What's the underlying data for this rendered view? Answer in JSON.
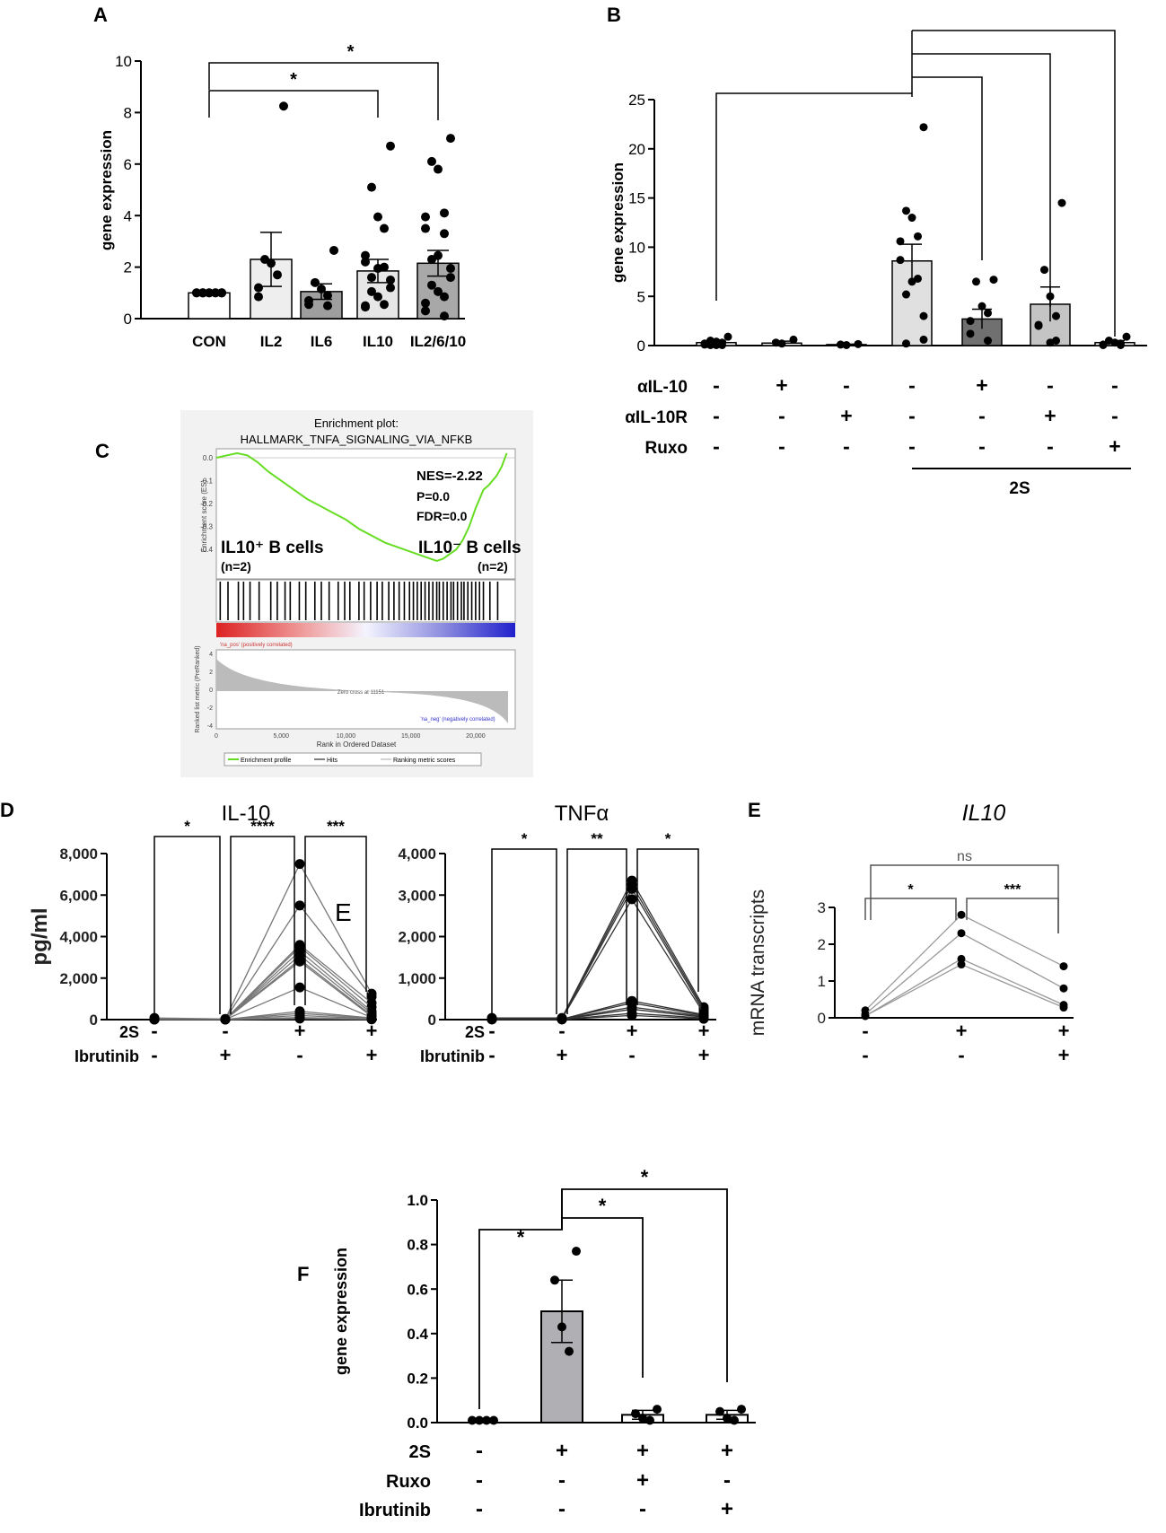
{
  "panels": {
    "A": {
      "letter": "A"
    },
    "B": {
      "letter": "B"
    },
    "C": {
      "letter": "C"
    },
    "D": {
      "letter": "D"
    },
    "E": {
      "letter": "E",
      "stray_letter": "E"
    },
    "F": {
      "letter": "F"
    }
  },
  "chart_data": [
    {
      "id": "A",
      "type": "bar",
      "ylabel": "gene expression",
      "ylim": [
        0,
        10
      ],
      "yticks": [
        "0",
        "2",
        "4",
        "6",
        "8",
        "10"
      ],
      "categories": [
        "CON",
        "IL2",
        "IL6",
        "IL10",
        "IL2/6/10"
      ],
      "values": [
        1.0,
        2.3,
        1.05,
        1.85,
        2.15
      ],
      "errors": [
        0.0,
        1.05,
        0.3,
        0.45,
        0.5
      ],
      "bar_colors": [
        "#ffffff",
        "#eeeeee",
        "#9e9e9e",
        "#e6e6e6",
        "#a8a8a8"
      ],
      "points": [
        [
          1,
          1,
          1,
          1,
          1,
          1,
          1,
          1,
          1,
          1,
          1,
          1
        ],
        [
          8.25,
          2.3,
          2.15,
          1.7,
          1.2,
          0.85
        ],
        [
          2.65,
          1.4,
          1.15,
          0.9,
          0.7,
          0.55,
          0.5
        ],
        [
          6.7,
          5.1,
          3.95,
          3.5,
          2.45,
          2.2,
          2.0,
          1.95,
          1.6,
          1.5,
          1.2,
          1.05,
          0.85,
          0.55,
          0.5,
          0.45
        ],
        [
          7.0,
          6.1,
          5.8,
          4.1,
          3.95,
          3.5,
          3.3,
          2.45,
          2.3,
          1.95,
          1.6,
          1.3,
          1.05,
          0.85,
          0.6,
          0.3,
          0.1
        ]
      ],
      "brackets": [
        {
          "from": 0,
          "to": 3,
          "label": "*"
        },
        {
          "from": 0,
          "to": 4,
          "label": "*"
        }
      ]
    },
    {
      "id": "B",
      "type": "bar",
      "ylabel": "gene expression",
      "ylim": [
        0,
        25
      ],
      "yticks": [
        "0",
        "5",
        "10",
        "15",
        "20",
        "25"
      ],
      "values": [
        0.3,
        0.25,
        0.1,
        8.6,
        2.7,
        4.2,
        0.3
      ],
      "errors": [
        0.15,
        0.2,
        0.05,
        1.7,
        1.0,
        1.75,
        0.2
      ],
      "bar_colors": [
        "#ffffff",
        "#ffffff",
        "#ffffff",
        "#e0e0e0",
        "#707070",
        "#c4c4c4",
        "#ffffff"
      ],
      "points": [
        [
          0.9,
          0.5,
          0.4,
          0.3,
          0.2,
          0.1,
          0.05,
          0.05,
          0.05
        ],
        [
          0.6,
          0.3,
          0.2
        ],
        [
          0.15,
          0.1,
          0.05
        ],
        [
          22.2,
          13.7,
          13.0,
          11.1,
          10.6,
          8.7,
          6.8,
          6.5,
          5.2,
          3.0,
          0.6,
          0.2
        ],
        [
          6.7,
          6.5,
          4.0,
          3.3,
          2.5,
          1.2,
          0.5
        ],
        [
          14.5,
          7.7,
          5.0,
          3.0,
          2.1,
          2.0,
          0.5,
          0.3
        ],
        [
          0.9,
          0.5,
          0.3,
          0.2,
          0.1,
          0.05,
          0.05
        ]
      ],
      "conditions": [
        {
          "label": "αIL-10",
          "signs": [
            "-",
            "+",
            "-",
            "-",
            "+",
            "-",
            "-"
          ]
        },
        {
          "label": "αIL-10R",
          "signs": [
            "-",
            "-",
            "+",
            "-",
            "-",
            "+",
            "-"
          ]
        },
        {
          "label": "Ruxo",
          "signs": [
            "-",
            "-",
            "-",
            "-",
            "-",
            "-",
            "+"
          ]
        }
      ],
      "group_label": "2S",
      "brackets": [
        {
          "from": 3,
          "to": 0
        },
        {
          "from": 3,
          "to": 4
        },
        {
          "from": 3,
          "to": 5
        },
        {
          "from": 3,
          "to": 6
        }
      ]
    },
    {
      "id": "C",
      "type": "line",
      "title_line1": "Enrichment plot:",
      "title_line2": "HALLMARK_TNFA_SIGNALING_VIA_NFKB",
      "ylabel": "Enrichment score (ES)",
      "yticks": [
        "0.0",
        "-0.1",
        "-0.2",
        "-0.3",
        "-0.4"
      ],
      "stats": [
        "NES=-2.22",
        "P=0.0",
        "FDR=0.0"
      ],
      "left_group": "IL10⁺ B cells",
      "left_n": "(n=2)",
      "right_group": "IL10⁻ B cells",
      "right_n": "(n=2)",
      "pos_label": "'na_pos' (positively correlated)",
      "neg_label": "'na_neg' (negatively correlated)",
      "zero_cross": "Zero cross at 11151",
      "metric_ylabel": "Ranked list metric (PreRanked)",
      "metric_yticks": [
        "4",
        "2",
        "0",
        "-2",
        "-4"
      ],
      "xticks": [
        "0",
        "5,000",
        "10,000",
        "15,000",
        "20,000"
      ],
      "xlabel": "Rank in Ordered Dataset",
      "legend": [
        "Enrichment profile",
        "Hits",
        "Ranking metric scores"
      ],
      "rank_max": 22500,
      "es_curve": [
        [
          0,
          0.0
        ],
        [
          800,
          0.01
        ],
        [
          1600,
          0.02
        ],
        [
          2400,
          0.01
        ],
        [
          3200,
          -0.02
        ],
        [
          4000,
          -0.06
        ],
        [
          5000,
          -0.1
        ],
        [
          6000,
          -0.14
        ],
        [
          7000,
          -0.18
        ],
        [
          8000,
          -0.21
        ],
        [
          9000,
          -0.24
        ],
        [
          10000,
          -0.27
        ],
        [
          11000,
          -0.31
        ],
        [
          12000,
          -0.34
        ],
        [
          13000,
          -0.37
        ],
        [
          14000,
          -0.39
        ],
        [
          15000,
          -0.41
        ],
        [
          16000,
          -0.43
        ],
        [
          17000,
          -0.45
        ],
        [
          17500,
          -0.44
        ],
        [
          18000,
          -0.42
        ],
        [
          18500,
          -0.4
        ],
        [
          19000,
          -0.36
        ],
        [
          19500,
          -0.3
        ],
        [
          20000,
          -0.22
        ],
        [
          20600,
          -0.14
        ],
        [
          21000,
          -0.12
        ],
        [
          21600,
          -0.08
        ],
        [
          22000,
          -0.04
        ],
        [
          22400,
          0.02
        ]
      ],
      "hits": [
        300,
        900,
        1700,
        2100,
        2600,
        3300,
        4200,
        4700,
        5300,
        5700,
        6400,
        6900,
        7600,
        8100,
        8700,
        9400,
        9900,
        10300,
        11000,
        11400,
        11900,
        12400,
        12800,
        13300,
        13700,
        14100,
        14500,
        14900,
        15200,
        15500,
        15800,
        16100,
        16400,
        16700,
        17000,
        17200,
        17500,
        17800,
        18100,
        18300,
        18600,
        18900,
        19100,
        19400,
        19700,
        20000,
        20300,
        20600,
        21100,
        21700
      ]
    },
    {
      "id": "D1",
      "type": "line",
      "title": "IL-10",
      "ylabel": "pg/ml",
      "ylim": [
        0,
        8000
      ],
      "yticks": [
        "0",
        "2,000",
        "4,000",
        "6,000",
        "8,000"
      ],
      "conditions": [
        {
          "label": "2S",
          "signs": [
            "-",
            "-",
            "+",
            "+"
          ]
        },
        {
          "label": "Ibrutinib",
          "signs": [
            "-",
            "+",
            "-",
            "+"
          ]
        }
      ],
      "series": [
        [
          80,
          30,
          7500,
          1250
        ],
        [
          60,
          20,
          5500,
          1100
        ],
        [
          40,
          20,
          3600,
          800
        ],
        [
          30,
          10,
          3500,
          600
        ],
        [
          20,
          10,
          3300,
          400
        ],
        [
          20,
          10,
          3100,
          300
        ],
        [
          20,
          10,
          2900,
          200
        ],
        [
          15,
          5,
          2800,
          150
        ],
        [
          10,
          5,
          1550,
          100
        ],
        [
          10,
          5,
          400,
          80
        ],
        [
          5,
          5,
          300,
          60
        ],
        [
          5,
          5,
          200,
          40
        ],
        [
          5,
          5,
          100,
          20
        ],
        [
          5,
          5,
          50,
          10
        ]
      ],
      "brackets": [
        {
          "from": 0,
          "to": 1,
          "label": "*"
        },
        {
          "from": 1,
          "to": 2,
          "label": "****"
        },
        {
          "from": 2,
          "to": 3,
          "label": "***"
        }
      ]
    },
    {
      "id": "D2",
      "type": "line",
      "title": "TNFα",
      "ylim": [
        0,
        4000
      ],
      "yticks": [
        "0",
        "1,000",
        "2,000",
        "3,000",
        "4,000"
      ],
      "conditions": [
        {
          "label": "2S",
          "signs": [
            "-",
            "-",
            "+",
            "+"
          ]
        },
        {
          "label": "Ibrutinib",
          "signs": [
            "-",
            "+",
            "-",
            "+"
          ]
        }
      ],
      "series": [
        [
          40,
          40,
          3350,
          300
        ],
        [
          30,
          30,
          3250,
          250
        ],
        [
          20,
          20,
          3150,
          200
        ],
        [
          20,
          20,
          2900,
          150
        ],
        [
          10,
          10,
          450,
          120
        ],
        [
          10,
          10,
          400,
          100
        ],
        [
          10,
          10,
          300,
          80
        ],
        [
          5,
          5,
          250,
          60
        ],
        [
          5,
          5,
          150,
          40
        ],
        [
          5,
          5,
          100,
          20
        ]
      ],
      "brackets": [
        {
          "from": 0,
          "to": 1,
          "label": "*"
        },
        {
          "from": 1,
          "to": 2,
          "label": "**"
        },
        {
          "from": 2,
          "to": 3,
          "label": "*"
        }
      ]
    },
    {
      "id": "E",
      "type": "line",
      "title": "IL10",
      "ylabel": "mRNA transcripts",
      "ylim": [
        0,
        3
      ],
      "yticks": [
        "0",
        "1",
        "2",
        "3"
      ],
      "conditions": [
        {
          "signs": [
            "-",
            "+",
            "+"
          ]
        },
        {
          "signs": [
            "-",
            "-",
            "+"
          ]
        }
      ],
      "series": [
        [
          0.2,
          2.8,
          1.4
        ],
        [
          0.1,
          2.3,
          0.8
        ],
        [
          0.05,
          1.6,
          0.35
        ],
        [
          0.05,
          1.45,
          0.28
        ]
      ],
      "brackets": [
        {
          "from": 0,
          "to": 1,
          "label": "*"
        },
        {
          "from": 1,
          "to": 2,
          "label": "***"
        },
        {
          "from": 0,
          "to": 2,
          "label": "ns"
        }
      ]
    },
    {
      "id": "F",
      "type": "bar",
      "ylabel": "gene expression",
      "ylim": [
        0,
        1.0
      ],
      "yticks": [
        "0.0",
        "0.2",
        "0.4",
        "0.6",
        "0.8",
        "1.0"
      ],
      "values": [
        0.0,
        0.5,
        0.035,
        0.035
      ],
      "errors": [
        0.0,
        0.14,
        0.02,
        0.02
      ],
      "bar_colors": [
        "#ffffff",
        "#b0b0b4",
        "#ffffff",
        "#ffffff"
      ],
      "points": [
        [
          0.01,
          0.01,
          0.01,
          0.01
        ],
        [
          0.77,
          0.64,
          0.43,
          0.32
        ],
        [
          0.06,
          0.04,
          0.02,
          0.01
        ],
        [
          0.06,
          0.05,
          0.02,
          0.01
        ]
      ],
      "conditions": [
        {
          "label": "2S",
          "signs": [
            "-",
            "+",
            "+",
            "+"
          ]
        },
        {
          "label": "Ruxo",
          "signs": [
            "-",
            "-",
            "+",
            "-"
          ]
        },
        {
          "label": "Ibrutinib",
          "signs": [
            "-",
            "-",
            "-",
            "+"
          ]
        }
      ],
      "brackets": [
        {
          "from": 1,
          "to": 0,
          "label": "*"
        },
        {
          "from": 1,
          "to": 2,
          "label": "*"
        },
        {
          "from": 1,
          "to": 3,
          "label": "*"
        }
      ]
    }
  ]
}
